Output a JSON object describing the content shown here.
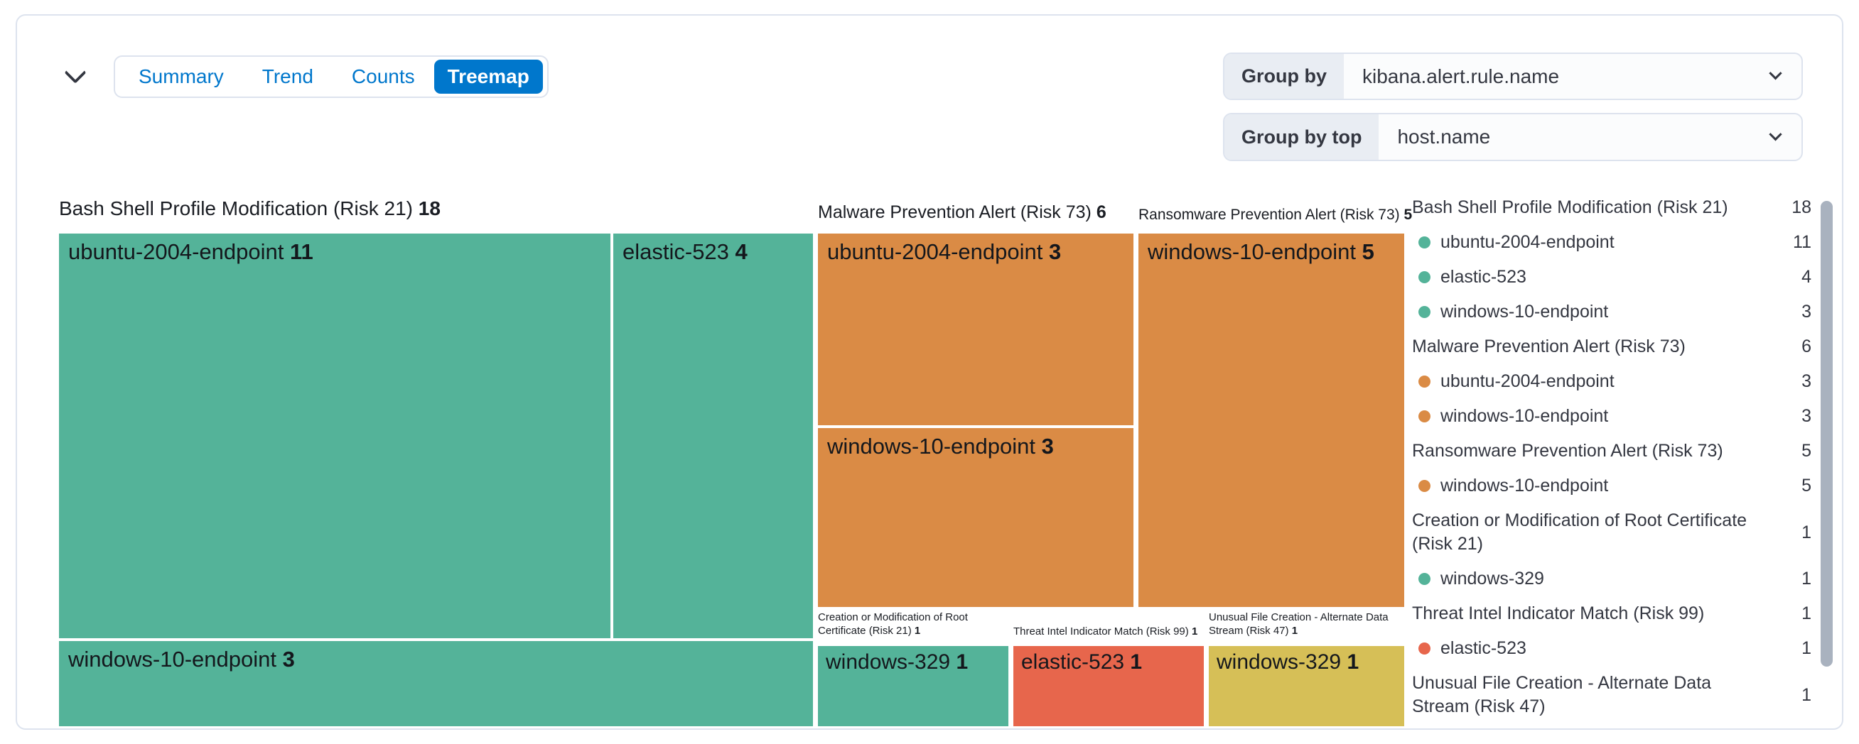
{
  "toolbar": {
    "tabs": [
      {
        "label": "Summary",
        "selected": false
      },
      {
        "label": "Trend",
        "selected": false
      },
      {
        "label": "Counts",
        "selected": false
      },
      {
        "label": "Treemap",
        "selected": true
      }
    ]
  },
  "controls": {
    "group_by": {
      "label": "Group by",
      "value": "kibana.alert.rule.name"
    },
    "group_by_top": {
      "label": "Group by top",
      "value": "host.name"
    }
  },
  "colors": {
    "accent_blue": "#0077cc",
    "risk_low_green": "#54b399",
    "risk_high_orange": "#da8b45",
    "risk_critical_red": "#e7664c",
    "risk_medium_yellow": "#d6bf57",
    "scrollbar_thumb": "#a9b2bf"
  },
  "chart_data": {
    "type": "treemap",
    "group_by_field": "kibana.alert.rule.name",
    "group_by_top_field": "host.name",
    "groups": [
      {
        "label": "Bash Shell Profile Modification (Risk 21)",
        "value": 18,
        "color": "#54b399",
        "children": [
          {
            "label": "ubuntu-2004-endpoint",
            "value": 11
          },
          {
            "label": "elastic-523",
            "value": 4
          },
          {
            "label": "windows-10-endpoint",
            "value": 3
          }
        ]
      },
      {
        "label": "Malware Prevention Alert (Risk 73)",
        "value": 6,
        "color": "#da8b45",
        "children": [
          {
            "label": "ubuntu-2004-endpoint",
            "value": 3
          },
          {
            "label": "windows-10-endpoint",
            "value": 3
          }
        ]
      },
      {
        "label": "Ransomware Prevention Alert (Risk 73)",
        "value": 5,
        "color": "#da8b45",
        "children": [
          {
            "label": "windows-10-endpoint",
            "value": 5
          }
        ]
      },
      {
        "label": "Creation or Modification of Root Certificate (Risk 21)",
        "value": 1,
        "color": "#54b399",
        "children": [
          {
            "label": "windows-329",
            "value": 1
          }
        ]
      },
      {
        "label": "Threat Intel Indicator Match (Risk 99)",
        "value": 1,
        "color": "#e7664c",
        "children": [
          {
            "label": "elastic-523",
            "value": 1
          }
        ]
      },
      {
        "label": "Unusual File Creation - Alternate Data Stream (Risk 47)",
        "value": 1,
        "color": "#d6bf57",
        "children": [
          {
            "label": "windows-329",
            "value": 1
          }
        ]
      }
    ]
  },
  "legend": {
    "items": [
      {
        "label": "Bash Shell Profile Modification (Risk 21)",
        "count": 18,
        "dot": null
      },
      {
        "label": "ubuntu-2004-endpoint",
        "count": 11,
        "dot": "#54b399"
      },
      {
        "label": "elastic-523",
        "count": 4,
        "dot": "#54b399"
      },
      {
        "label": "windows-10-endpoint",
        "count": 3,
        "dot": "#54b399"
      },
      {
        "label": "Malware Prevention Alert (Risk 73)",
        "count": 6,
        "dot": null
      },
      {
        "label": "ubuntu-2004-endpoint",
        "count": 3,
        "dot": "#da8b45"
      },
      {
        "label": "windows-10-endpoint",
        "count": 3,
        "dot": "#da8b45"
      },
      {
        "label": "Ransomware Prevention Alert (Risk 73)",
        "count": 5,
        "dot": null
      },
      {
        "label": "windows-10-endpoint",
        "count": 5,
        "dot": "#da8b45"
      },
      {
        "label": "Creation or Modification of Root Certificate (Risk 21)",
        "count": 1,
        "dot": null
      },
      {
        "label": "windows-329",
        "count": 1,
        "dot": "#54b399"
      },
      {
        "label": "Threat Intel Indicator Match (Risk 99)",
        "count": 1,
        "dot": null
      },
      {
        "label": "elastic-523",
        "count": 1,
        "dot": "#e7664c"
      },
      {
        "label": "Unusual File Creation - Alternate Data Stream (Risk 47)",
        "count": 1,
        "dot": null
      }
    ]
  }
}
